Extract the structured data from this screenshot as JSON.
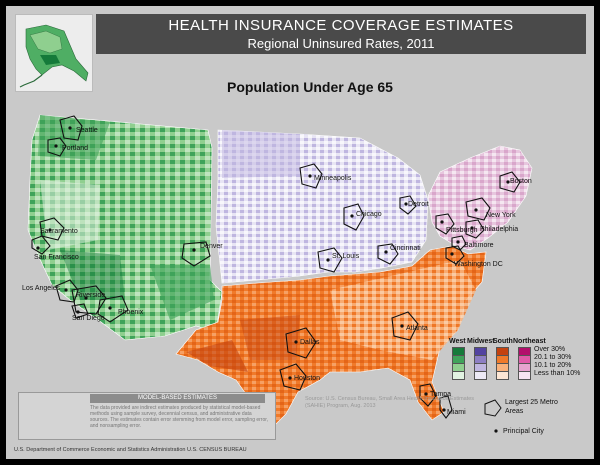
{
  "title": {
    "main": "HEALTH INSURANCE COVERAGE ESTIMATES",
    "sub": "Regional Uninsured Rates, 2011",
    "population": "Population Under Age 65"
  },
  "cities": [
    "Seattle",
    "Portland",
    "Sacramento",
    "San Francisco",
    "Los Angeles",
    "Riverside",
    "San Diego",
    "Phoenix",
    "Denver",
    "Minneapolis",
    "Chicago",
    "Detroit",
    "St. Louis",
    "Cincinnati",
    "Pittsburgh",
    "Boston",
    "New York",
    "Philadelphia",
    "Baltimore",
    "Washington DC",
    "Atlanta",
    "Dallas",
    "Houston",
    "Tampa",
    "Miami"
  ],
  "legend": {
    "regions": [
      "West",
      "Midwest",
      "South",
      "Northeast"
    ],
    "categories": [
      "Over 30%",
      "20.1 to 30%",
      "10.1 to 20%",
      "Less than 10%"
    ],
    "colors": {
      "West": [
        "#157a3a",
        "#3fa35a",
        "#8fcf8f",
        "#e2f3e2"
      ],
      "Midwest": [
        "#5243a0",
        "#8d7fc4",
        "#bfb6e0",
        "#edeaf6"
      ],
      "South": [
        "#c4420f",
        "#f07a2a",
        "#f9b27c",
        "#fde6d4"
      ],
      "Northeast": [
        "#b30e6c",
        "#e05aa8",
        "#e7a3cf",
        "#f7e5f1"
      ]
    },
    "metro_label": "Largest 25 Metro Areas",
    "principal_city_label": "Principal City"
  },
  "note": {
    "header": "MODEL-BASED ESTIMATES",
    "text": "The data provided are indirect estimates produced by statistical model-based methods using sample survey, decennial census, and administrative data sources. The estimates contain error stemming from model error, sampling error, and nonsampling error."
  },
  "source": "Source: U.S. Census Bureau, Small Area Health Insurance Estimates (SAHIE) Program, Aug. 2013",
  "footer": "U.S. Department of Commerce  Economic and Statistics Administration  U.S. CENSUS BUREAU"
}
